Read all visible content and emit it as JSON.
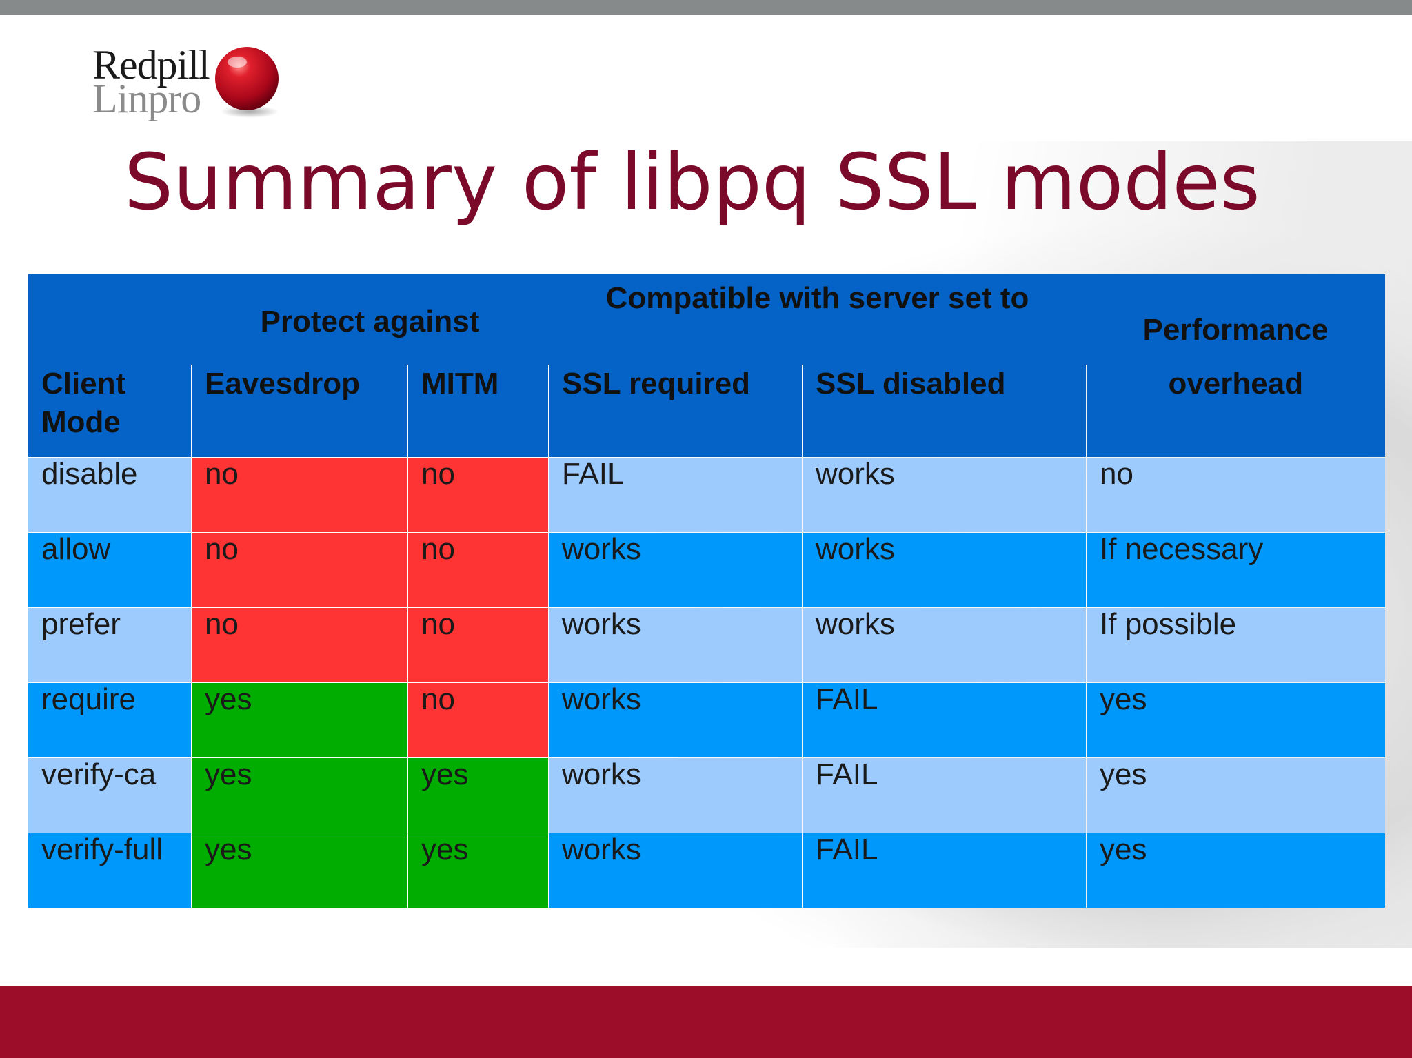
{
  "logo": {
    "line1": "Redpill",
    "line2": "Linpro",
    "ball_color": "#c0121f"
  },
  "title": "Summary of libpq SSL modes",
  "table": {
    "group_headers": {
      "protect": "Protect against",
      "compatible": "Compatible with server set to",
      "performance_top": "Performance"
    },
    "column_headers": {
      "client_mode": "Client Mode",
      "eavesdrop": "Eavesdrop",
      "mitm": "MITM",
      "ssl_required": "SSL required",
      "ssl_disabled": "SSL disabled",
      "performance_bottom": "overhead"
    },
    "rows": [
      {
        "mode": "disable",
        "eavesdrop": "no",
        "mitm": "no",
        "ssl_required": "FAIL",
        "ssl_disabled": "works",
        "overhead": "no"
      },
      {
        "mode": "allow",
        "eavesdrop": "no",
        "mitm": "no",
        "ssl_required": "works",
        "ssl_disabled": "works",
        "overhead": "If necessary"
      },
      {
        "mode": "prefer",
        "eavesdrop": "no",
        "mitm": "no",
        "ssl_required": "works",
        "ssl_disabled": "works",
        "overhead": "If possible"
      },
      {
        "mode": "require",
        "eavesdrop": "yes",
        "mitm": "no",
        "ssl_required": "works",
        "ssl_disabled": "FAIL",
        "overhead": "yes"
      },
      {
        "mode": "verify-ca",
        "eavesdrop": "yes",
        "mitm": "yes",
        "ssl_required": "works",
        "ssl_disabled": "FAIL",
        "overhead": "yes"
      },
      {
        "mode": "verify-full",
        "eavesdrop": "yes",
        "mitm": "yes",
        "ssl_required": "works",
        "ssl_disabled": "FAIL",
        "overhead": "yes"
      }
    ]
  },
  "colors": {
    "title": "#7b0a2a",
    "header": "#0563c8",
    "row_light": "#9dcbfd",
    "row_dark": "#0198fb",
    "no": "#fe3334",
    "yes": "#01ad01",
    "top_bar": "#868a8b",
    "bottom_bar": "#9b0d28"
  }
}
